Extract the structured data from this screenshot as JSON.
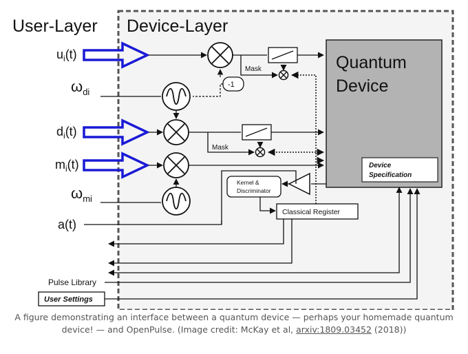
{
  "diagram": {
    "user_layer_title": "User-Layer",
    "device_layer_title": "Device-Layer",
    "inputs": {
      "u": "u",
      "u_sub": "i",
      "u_arg": "(t)",
      "wd": "ω",
      "wd_sub": "di",
      "d": "d",
      "d_sub": "i",
      "d_arg": "(t)",
      "m": "m",
      "m_sub": "i",
      "m_arg": "(t)",
      "wm": "ω",
      "wm_sub": "mi",
      "a": "a(t)"
    },
    "mask_label_top": "Mask",
    "mask_label_bottom": "Mask",
    "neg_one": "-1",
    "quantum_device_line1": "Quantum",
    "quantum_device_line2": "Device",
    "device_spec_line1": "Device",
    "device_spec_line2": "Specification",
    "kernel_line1": "Kernel &",
    "kernel_line2": "Discriminator",
    "classical_register": "Classical Register",
    "pulse_library": "Pulse Library",
    "user_settings": "User Settings",
    "colors": {
      "input_arrow": "#1a1ad6",
      "device_fill": "#b3b3b3",
      "border": "#555555"
    }
  },
  "caption": {
    "text_before": "A figure demonstrating an interface between a quantum device — perhaps your homemade quantum device! — and OpenPulse. (Image credit: McKay et al, ",
    "link": "arxiv:1809.03452",
    "text_after": " (2018))"
  }
}
